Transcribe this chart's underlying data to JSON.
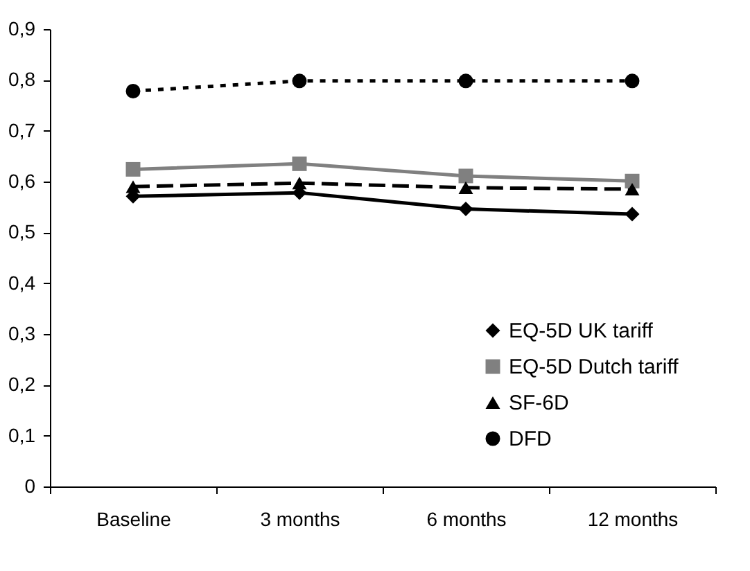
{
  "chart_data": {
    "type": "line",
    "categories": [
      "Baseline",
      "3 months",
      "6 months",
      "12 months"
    ],
    "series": [
      {
        "name": "EQ-5D UK tariff",
        "color": "#000000",
        "marker": "diamond",
        "line_style": "solid",
        "values": [
          0.571,
          0.578,
          0.546,
          0.536
        ]
      },
      {
        "name": "EQ-5D Dutch tariff",
        "color": "#808080",
        "marker": "square",
        "line_style": "solid",
        "values": [
          0.624,
          0.635,
          0.611,
          0.601
        ]
      },
      {
        "name": "SF-6D",
        "color": "#000000",
        "marker": "triangle",
        "line_style": "dashed",
        "values": [
          0.59,
          0.597,
          0.588,
          0.585
        ]
      },
      {
        "name": "DFD",
        "color": "#000000",
        "marker": "circle",
        "line_style": "dotted",
        "values": [
          0.778,
          0.798,
          0.798,
          0.798
        ]
      }
    ],
    "ylim": [
      0,
      0.9
    ],
    "yticks": [
      0,
      {
        "value": 0.1,
        "label": "0,1"
      },
      {
        "value": 0.2,
        "label": "0,2"
      },
      {
        "value": 0.3,
        "label": "0,3"
      },
      {
        "value": 0.4,
        "label": "0,4"
      },
      {
        "value": 0.5,
        "label": "0,5"
      },
      {
        "value": 0.6,
        "label": "0,6"
      },
      {
        "value": 0.7,
        "label": "0,7"
      },
      {
        "value": 0.8,
        "label": "0,8"
      },
      {
        "value": 0.9,
        "label": "0,9"
      }
    ],
    "grid": false,
    "legend": "bottom right"
  }
}
